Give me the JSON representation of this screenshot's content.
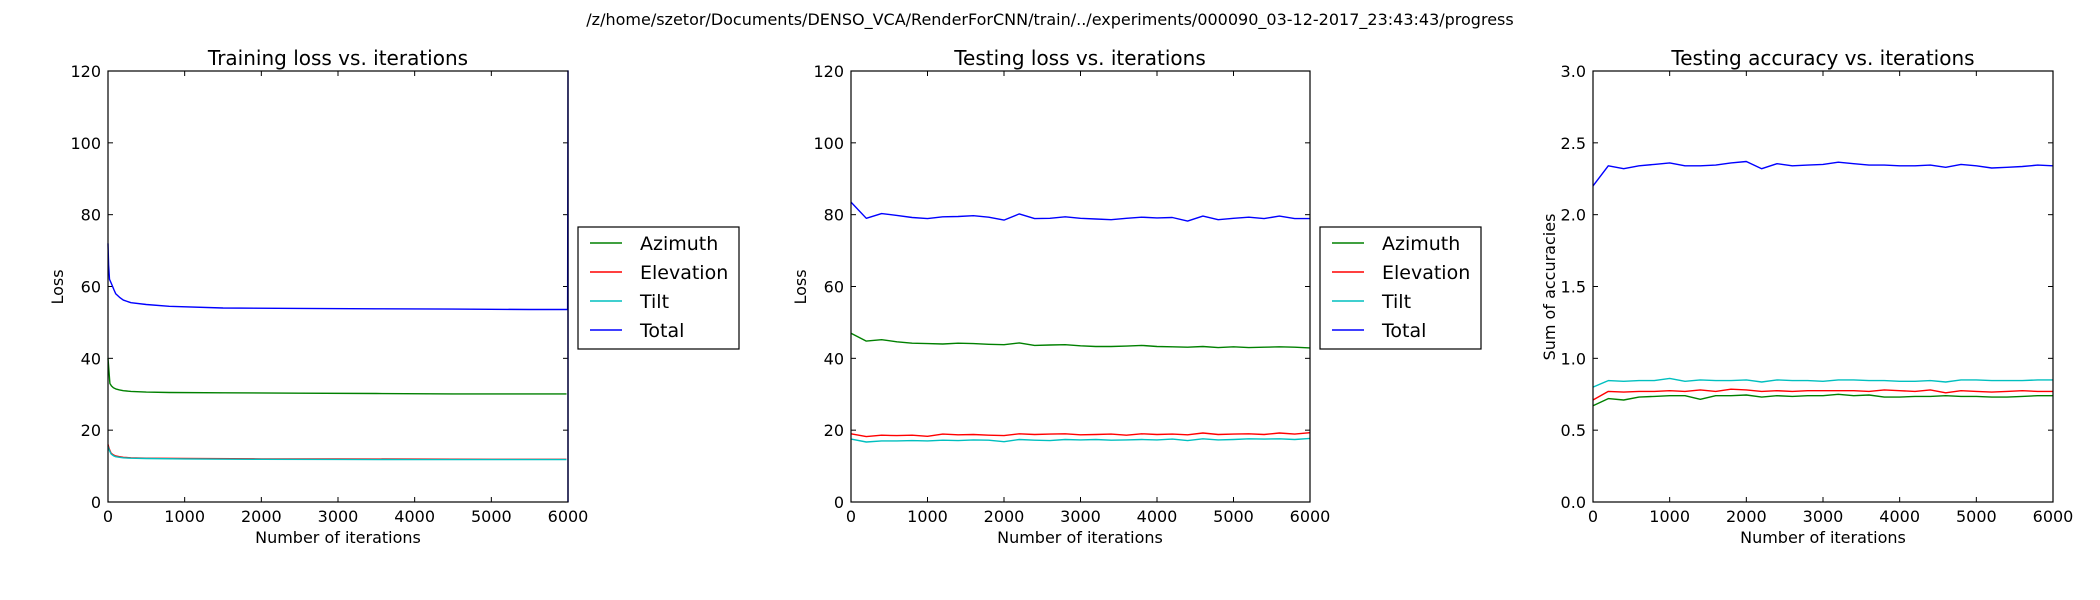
{
  "figure": {
    "suptitle": "/z/home/szetor/Documents/DENSO_VCA/RenderForCNN/train/../experiments/000090_03-12-2017_23:43:43/progress"
  },
  "colors": {
    "Azimuth": "#008000",
    "Elevation": "#ff0000",
    "Tilt": "#00bfbf",
    "Total": "#0000ff"
  },
  "chart_data": [
    {
      "id": "training-loss",
      "type": "line",
      "title": "Training loss vs. iterations",
      "xlabel": "Number of iterations",
      "ylabel": "Loss",
      "xlim": [
        0,
        6000
      ],
      "ylim": [
        0,
        120
      ],
      "xticks": [
        0,
        1000,
        2000,
        3000,
        4000,
        5000,
        6000
      ],
      "yticks": [
        0,
        20,
        40,
        60,
        80,
        100,
        120
      ],
      "legend": [
        "Azimuth",
        "Elevation",
        "Tilt",
        "Total"
      ],
      "series": [
        {
          "name": "Azimuth",
          "x": [
            0,
            10,
            25,
            45,
            70,
            100,
            150,
            200,
            300,
            500,
            800,
            1500,
            2500,
            3500,
            4500,
            5500,
            5980
          ],
          "values": [
            40,
            37,
            33,
            32.3,
            31.8,
            31.5,
            31.2,
            31.0,
            30.8,
            30.6,
            30.5,
            30.4,
            30.3,
            30.2,
            30.1,
            30.1,
            30.1
          ]
        },
        {
          "name": "Elevation",
          "x": [
            0,
            15,
            40,
            70,
            100,
            150,
            200,
            300,
            500,
            1000,
            2000,
            3000,
            4000,
            5000,
            5980
          ],
          "values": [
            16,
            14.8,
            13.6,
            13.1,
            12.8,
            12.6,
            12.45,
            12.3,
            12.2,
            12.1,
            12.0,
            12.0,
            11.95,
            11.9,
            11.9
          ]
        },
        {
          "name": "Tilt",
          "x": [
            0,
            15,
            40,
            70,
            100,
            150,
            200,
            300,
            500,
            1000,
            2000,
            3000,
            4000,
            5000,
            5980
          ],
          "values": [
            15.5,
            14.5,
            13.4,
            12.9,
            12.6,
            12.45,
            12.3,
            12.2,
            12.1,
            12.0,
            11.9,
            11.85,
            11.8,
            11.8,
            11.8
          ]
        },
        {
          "name": "Total",
          "x": [
            0,
            8,
            20,
            40,
            60,
            80,
            100,
            150,
            200,
            300,
            500,
            800,
            1500,
            2500,
            3500,
            4500,
            5500,
            5980,
            5995,
            6000,
            6000
          ],
          "values": [
            72,
            66,
            62,
            61,
            60,
            59,
            58,
            57,
            56.2,
            55.5,
            55,
            54.5,
            54,
            53.9,
            53.8,
            53.7,
            53.6,
            53.6,
            53.6,
            120,
            0
          ]
        }
      ]
    },
    {
      "id": "testing-loss",
      "type": "line",
      "title": "Testing loss vs. iterations",
      "xlabel": "Number of iterations",
      "ylabel": "Loss",
      "xlim": [
        0,
        6000
      ],
      "ylim": [
        0,
        120
      ],
      "xticks": [
        0,
        1000,
        2000,
        3000,
        4000,
        5000,
        6000
      ],
      "yticks": [
        0,
        20,
        40,
        60,
        80,
        100,
        120
      ],
      "legend": [
        "Azimuth",
        "Elevation",
        "Tilt",
        "Total"
      ],
      "series": [
        {
          "name": "Azimuth",
          "x": [
            0,
            200,
            400,
            600,
            800,
            1000,
            1200,
            1400,
            1600,
            1800,
            2000,
            2200,
            2400,
            2600,
            2800,
            3000,
            3200,
            3400,
            3600,
            3800,
            4000,
            4200,
            4400,
            4600,
            4800,
            5000,
            5200,
            5400,
            5600,
            5800,
            6000
          ],
          "values": [
            47,
            44.8,
            45.2,
            44.6,
            44.2,
            44.1,
            44.0,
            44.2,
            44.1,
            43.9,
            43.8,
            44.3,
            43.6,
            43.7,
            43.8,
            43.5,
            43.3,
            43.3,
            43.4,
            43.6,
            43.3,
            43.2,
            43.1,
            43.3,
            43.0,
            43.2,
            43.0,
            43.1,
            43.2,
            43.1,
            42.9
          ]
        },
        {
          "name": "Elevation",
          "x": [
            0,
            200,
            400,
            600,
            800,
            1000,
            1200,
            1400,
            1600,
            1800,
            2000,
            2200,
            2400,
            2600,
            2800,
            3000,
            3200,
            3400,
            3600,
            3800,
            4000,
            4200,
            4400,
            4600,
            4800,
            5000,
            5200,
            5400,
            5600,
            5800,
            6000
          ],
          "values": [
            19,
            18.2,
            18.6,
            18.5,
            18.6,
            18.3,
            18.9,
            18.7,
            18.8,
            18.6,
            18.5,
            19.0,
            18.8,
            18.9,
            19.0,
            18.7,
            18.8,
            18.9,
            18.6,
            19.0,
            18.8,
            18.9,
            18.7,
            19.2,
            18.8,
            18.9,
            19.0,
            18.8,
            19.2,
            18.9,
            19.3
          ]
        },
        {
          "name": "Tilt",
          "x": [
            0,
            200,
            400,
            600,
            800,
            1000,
            1200,
            1400,
            1600,
            1800,
            2000,
            2200,
            2400,
            2600,
            2800,
            3000,
            3200,
            3400,
            3600,
            3800,
            4000,
            4200,
            4400,
            4600,
            4800,
            5000,
            5200,
            5400,
            5600,
            5800,
            6000
          ],
          "values": [
            17.5,
            16.7,
            17.0,
            17.0,
            17.1,
            17.0,
            17.2,
            17.1,
            17.3,
            17.2,
            16.8,
            17.4,
            17.2,
            17.1,
            17.4,
            17.3,
            17.4,
            17.2,
            17.3,
            17.4,
            17.3,
            17.5,
            17.1,
            17.6,
            17.3,
            17.4,
            17.6,
            17.5,
            17.6,
            17.4,
            17.7
          ]
        },
        {
          "name": "Total",
          "x": [
            0,
            200,
            400,
            600,
            800,
            1000,
            1200,
            1400,
            1600,
            1800,
            2000,
            2200,
            2400,
            2600,
            2800,
            3000,
            3200,
            3400,
            3600,
            3800,
            4000,
            4200,
            4400,
            4600,
            4800,
            5000,
            5200,
            5400,
            5600,
            5800,
            6000
          ],
          "values": [
            83.5,
            79.0,
            80.3,
            79.8,
            79.2,
            78.9,
            79.4,
            79.5,
            79.7,
            79.3,
            78.5,
            80.2,
            78.9,
            79.0,
            79.4,
            79.0,
            78.8,
            78.6,
            79.0,
            79.3,
            79.1,
            79.2,
            78.2,
            79.6,
            78.6,
            79.0,
            79.3,
            78.9,
            79.6,
            78.9,
            78.9
          ]
        }
      ]
    },
    {
      "id": "testing-accuracy",
      "type": "line",
      "title": "Testing accuracy vs. iterations",
      "xlabel": "Number of iterations",
      "ylabel": "Sum of accuracies",
      "xlim": [
        0,
        6000
      ],
      "ylim": [
        0,
        3
      ],
      "xticks": [
        0,
        1000,
        2000,
        3000,
        4000,
        5000,
        6000
      ],
      "yticks": [
        0.0,
        0.5,
        1.0,
        1.5,
        2.0,
        2.5,
        3.0
      ],
      "ytick_labels": [
        "0.0",
        "0.5",
        "1.0",
        "1.5",
        "2.0",
        "2.5",
        "3.0"
      ],
      "legend": [],
      "series": [
        {
          "name": "Azimuth",
          "x": [
            0,
            200,
            400,
            600,
            800,
            1000,
            1200,
            1400,
            1600,
            1800,
            2000,
            2200,
            2400,
            2600,
            2800,
            3000,
            3200,
            3400,
            3600,
            3800,
            4000,
            4200,
            4400,
            4600,
            4800,
            5000,
            5200,
            5400,
            5600,
            5800,
            6000
          ],
          "values": [
            0.67,
            0.72,
            0.71,
            0.73,
            0.735,
            0.74,
            0.74,
            0.715,
            0.74,
            0.74,
            0.745,
            0.73,
            0.74,
            0.735,
            0.74,
            0.74,
            0.75,
            0.74,
            0.745,
            0.73,
            0.73,
            0.735,
            0.735,
            0.74,
            0.735,
            0.735,
            0.73,
            0.73,
            0.735,
            0.74,
            0.74
          ]
        },
        {
          "name": "Elevation",
          "x": [
            0,
            200,
            400,
            600,
            800,
            1000,
            1200,
            1400,
            1600,
            1800,
            2000,
            2200,
            2400,
            2600,
            2800,
            3000,
            3200,
            3400,
            3600,
            3800,
            4000,
            4200,
            4400,
            4600,
            4800,
            5000,
            5200,
            5400,
            5600,
            5800,
            6000
          ],
          "values": [
            0.71,
            0.77,
            0.765,
            0.77,
            0.77,
            0.775,
            0.77,
            0.78,
            0.77,
            0.785,
            0.78,
            0.77,
            0.775,
            0.77,
            0.775,
            0.775,
            0.775,
            0.775,
            0.77,
            0.78,
            0.775,
            0.77,
            0.78,
            0.76,
            0.775,
            0.77,
            0.765,
            0.77,
            0.775,
            0.77,
            0.77
          ]
        },
        {
          "name": "Tilt",
          "x": [
            0,
            200,
            400,
            600,
            800,
            1000,
            1200,
            1400,
            1600,
            1800,
            2000,
            2200,
            2400,
            2600,
            2800,
            3000,
            3200,
            3400,
            3600,
            3800,
            4000,
            4200,
            4400,
            4600,
            4800,
            5000,
            5200,
            5400,
            5600,
            5800,
            6000
          ],
          "values": [
            0.8,
            0.845,
            0.84,
            0.845,
            0.845,
            0.86,
            0.84,
            0.85,
            0.845,
            0.845,
            0.85,
            0.835,
            0.85,
            0.845,
            0.845,
            0.84,
            0.85,
            0.85,
            0.845,
            0.845,
            0.84,
            0.84,
            0.845,
            0.835,
            0.85,
            0.85,
            0.845,
            0.845,
            0.845,
            0.85,
            0.85
          ]
        },
        {
          "name": "Total",
          "x": [
            0,
            200,
            400,
            600,
            800,
            1000,
            1200,
            1400,
            1600,
            1800,
            2000,
            2200,
            2400,
            2600,
            2800,
            3000,
            3200,
            3400,
            3600,
            3800,
            4000,
            4200,
            4400,
            4600,
            4800,
            5000,
            5200,
            5400,
            5600,
            5800,
            6000
          ],
          "values": [
            2.2,
            2.34,
            2.32,
            2.34,
            2.35,
            2.36,
            2.34,
            2.34,
            2.345,
            2.36,
            2.37,
            2.32,
            2.355,
            2.34,
            2.345,
            2.35,
            2.365,
            2.355,
            2.345,
            2.345,
            2.34,
            2.34,
            2.345,
            2.33,
            2.35,
            2.34,
            2.325,
            2.33,
            2.335,
            2.345,
            2.34
          ]
        }
      ]
    }
  ]
}
